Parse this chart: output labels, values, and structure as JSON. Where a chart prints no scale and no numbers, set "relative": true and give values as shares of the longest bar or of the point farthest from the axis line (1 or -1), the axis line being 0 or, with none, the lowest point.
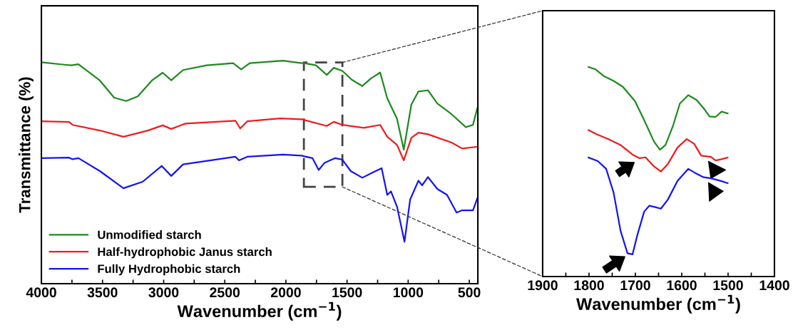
{
  "chart_data": [
    {
      "type": "line",
      "relative": true,
      "ylabel": "Transmittance (%)",
      "xlabel": "Wavenumber (cm$^{−1}$)",
      "xlim": [
        4000,
        430
      ],
      "xticks": [
        4000,
        {
          "value": 3750,
          "label": null
        },
        3500,
        {
          "value": 3250,
          "label": null
        },
        3000,
        {
          "value": 2750,
          "label": null
        },
        2500,
        {
          "value": 2250,
          "label": null
        },
        2000,
        {
          "value": 1750,
          "label": null
        },
        1500,
        {
          "value": 1250,
          "label": null
        },
        1000,
        {
          "value": 750,
          "label": null
        },
        500
      ],
      "tick_labels": "x",
      "legend": "bottom left",
      "grid": false,
      "marker": "none",
      "line_style": "solid",
      "series": [
        {
          "name": "Unmodified starch",
          "color": "#1e8a1e",
          "x": [
            4000,
            3813,
            3755,
            3697,
            3522,
            3405,
            3307,
            3212,
            3096,
            3008,
            2938,
            2841,
            2647,
            2432,
            2366,
            2296,
            2024,
            1870,
            1849,
            1754,
            1666,
            1608,
            1538,
            1462,
            1375,
            1305,
            1229,
            1171,
            1091,
            1036,
            974,
            916,
            838,
            762,
            645,
            529,
            470,
            435
          ],
          "values": [
            0.993,
            0.982,
            0.979,
            0.984,
            0.911,
            0.834,
            0.819,
            0.84,
            0.911,
            0.946,
            0.912,
            0.958,
            0.979,
            0.989,
            0.961,
            0.989,
            1.0,
            0.989,
            0.989,
            0.979,
            0.936,
            0.968,
            0.954,
            0.915,
            0.886,
            0.92,
            0.947,
            0.831,
            0.739,
            0.601,
            0.803,
            0.862,
            0.867,
            0.808,
            0.76,
            0.702,
            0.712,
            0.787
          ]
        },
        {
          "name": "Half-hydrophobic Janus starch",
          "color": "#ee1c1c",
          "x": [
            4000,
            3774,
            3745,
            3522,
            3329,
            3133,
            3008,
            2938,
            2822,
            2413,
            2374,
            2316,
            2046,
            1870,
            1849,
            1666,
            1608,
            1538,
            1363,
            1229,
            1171,
            1091,
            1036,
            974,
            916,
            838,
            645,
            558,
            435
          ],
          "values": [
            0.728,
            0.725,
            0.712,
            0.687,
            0.659,
            0.686,
            0.71,
            0.694,
            0.718,
            0.731,
            0.696,
            0.728,
            0.741,
            0.737,
            0.734,
            0.707,
            0.726,
            0.712,
            0.699,
            0.712,
            0.659,
            0.622,
            0.553,
            0.654,
            0.677,
            0.67,
            0.633,
            0.606,
            0.614
          ]
        },
        {
          "name": "Fully Hydrophobic starch",
          "color": "#1515ee",
          "x": [
            4000,
            3774,
            3745,
            3697,
            3522,
            3329,
            3172,
            3016,
            2938,
            2841,
            2413,
            2384,
            2316,
            2024,
            1870,
            1849,
            1783,
            1732,
            1684,
            1597,
            1538,
            1470,
            1375,
            1287,
            1217,
            1171,
            1141,
            1091,
            1030,
            984,
            916,
            886,
            838,
            762,
            682,
            604,
            558,
            470,
            435
          ],
          "values": [
            0.563,
            0.565,
            0.558,
            0.563,
            0.505,
            0.428,
            0.457,
            0.528,
            0.483,
            0.535,
            0.569,
            0.553,
            0.569,
            0.579,
            0.574,
            0.571,
            0.563,
            0.51,
            0.542,
            0.563,
            0.556,
            0.505,
            0.475,
            0.499,
            0.518,
            0.398,
            0.414,
            0.345,
            0.188,
            0.377,
            0.462,
            0.441,
            0.478,
            0.425,
            0.398,
            0.319,
            0.329,
            0.329,
            0.382
          ]
        }
      ]
    },
    {
      "type": "line",
      "relative": true,
      "xlabel": "Wavenumber (cm$^{−1}$)",
      "xlim": [
        1900,
        1400
      ],
      "xticks": [
        1900,
        {
          "value": 1850,
          "label": null
        },
        1800,
        {
          "value": 1750,
          "label": null
        },
        1700,
        {
          "value": 1650,
          "label": null
        },
        1600,
        {
          "value": 1550,
          "label": null
        },
        1500,
        {
          "value": 1450,
          "label": null
        },
        1400
      ],
      "tick_labels": "x",
      "legend": false,
      "grid": false,
      "marker": "none",
      "line_style": "solid",
      "series": [
        {
          "color": "#1e8a1e",
          "x": [
            1801,
            1786,
            1768,
            1747,
            1727,
            1701,
            1681,
            1660,
            1647,
            1635,
            1619,
            1604,
            1586,
            1568,
            1553,
            1540,
            1527,
            1514,
            1501
          ],
          "values": [
            1.0,
            0.989,
            0.957,
            0.934,
            0.906,
            0.838,
            0.747,
            0.645,
            0.605,
            0.628,
            0.718,
            0.826,
            0.866,
            0.843,
            0.804,
            0.764,
            0.762,
            0.787,
            0.779
          ]
        },
        {
          "color": "#ee1c1c",
          "x": [
            1801,
            1783,
            1758,
            1732,
            1706,
            1691,
            1678,
            1660,
            1645,
            1630,
            1609,
            1589,
            1573,
            1558,
            1537,
            1527,
            1514,
            1501
          ],
          "values": [
            0.699,
            0.679,
            0.656,
            0.628,
            0.582,
            0.565,
            0.569,
            0.526,
            0.501,
            0.537,
            0.616,
            0.656,
            0.633,
            0.577,
            0.571,
            0.554,
            0.56,
            0.568
          ]
        },
        {
          "color": "#1515ee",
          "x": [
            1801,
            1781,
            1763,
            1747,
            1732,
            1717,
            1706,
            1696,
            1681,
            1670,
            1660,
            1645,
            1630,
            1609,
            1586,
            1573,
            1553,
            1537,
            1517,
            1501
          ],
          "values": [
            0.568,
            0.551,
            0.514,
            0.401,
            0.219,
            0.111,
            0.106,
            0.196,
            0.31,
            0.338,
            0.333,
            0.324,
            0.367,
            0.457,
            0.514,
            0.497,
            0.474,
            0.469,
            0.457,
            0.446
          ]
        }
      ]
    }
  ]
}
